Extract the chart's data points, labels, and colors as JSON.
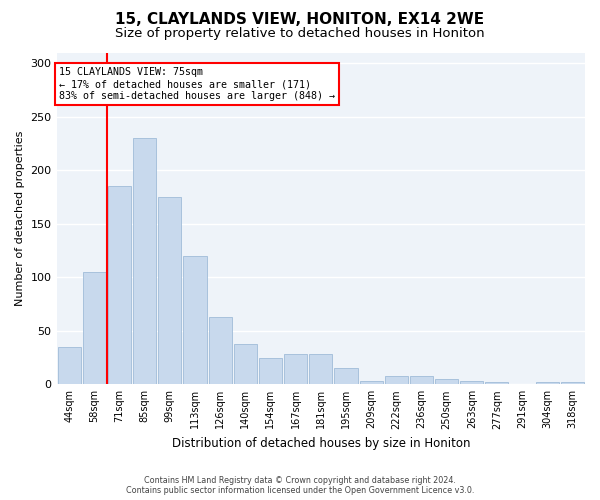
{
  "title1": "15, CLAYLANDS VIEW, HONITON, EX14 2WE",
  "title2": "Size of property relative to detached houses in Honiton",
  "xlabel": "Distribution of detached houses by size in Honiton",
  "ylabel": "Number of detached properties",
  "categories": [
    "44sqm",
    "58sqm",
    "71sqm",
    "85sqm",
    "99sqm",
    "113sqm",
    "126sqm",
    "140sqm",
    "154sqm",
    "167sqm",
    "181sqm",
    "195sqm",
    "209sqm",
    "222sqm",
    "236sqm",
    "250sqm",
    "263sqm",
    "277sqm",
    "291sqm",
    "304sqm",
    "318sqm"
  ],
  "values": [
    35,
    105,
    185,
    230,
    175,
    120,
    63,
    38,
    25,
    28,
    28,
    15,
    3,
    8,
    8,
    5,
    3,
    2,
    0,
    2,
    2
  ],
  "bar_color": "#c8d9ed",
  "bar_edge_color": "#a0bcd8",
  "red_line_x": 1.5,
  "annotation_text": "15 CLAYLANDS VIEW: 75sqm\n← 17% of detached houses are smaller (171)\n83% of semi-detached houses are larger (848) →",
  "annotation_box_color": "white",
  "annotation_box_edge": "red",
  "ylim": [
    0,
    310
  ],
  "yticks": [
    0,
    50,
    100,
    150,
    200,
    250,
    300
  ],
  "footer1": "Contains HM Land Registry data © Crown copyright and database right 2024.",
  "footer2": "Contains public sector information licensed under the Open Government Licence v3.0.",
  "bg_color": "#eef3f9",
  "title1_fontsize": 11,
  "title2_fontsize": 9.5
}
